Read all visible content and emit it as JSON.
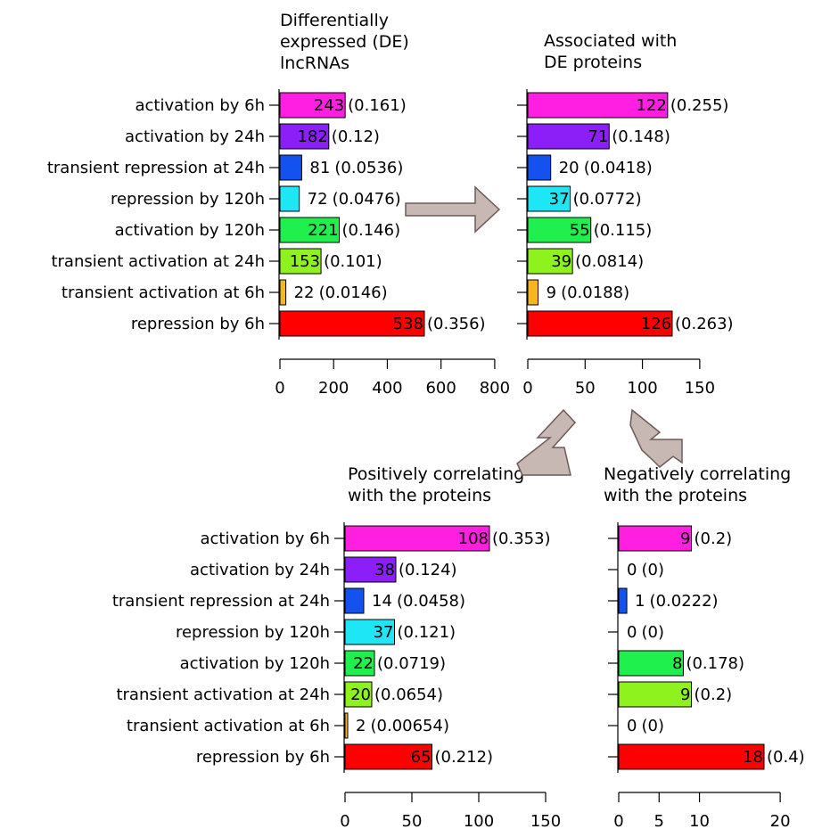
{
  "categories": [
    "activation by 6h",
    "activation by 24h",
    "transient repression at 24h",
    "repression by 120h",
    "activation by 120h",
    "transient activation at 24h",
    "transient activation at 6h",
    "repression by 6h"
  ],
  "colors": [
    "#ff1fe0",
    "#8c1ff7",
    "#1452f0",
    "#1fe6f5",
    "#1ff04d",
    "#8ef21f",
    "#f7b51f",
    "#ff0000"
  ],
  "chart_data": [
    {
      "type": "bar",
      "title": "Differentially expressed (DE) lncRNAs",
      "title_lines": [
        "Differentially",
        "expressed (DE)",
        "lncRNAs"
      ],
      "values": [
        243,
        182,
        81,
        72,
        221,
        153,
        22,
        538
      ],
      "fractions": [
        "0.161",
        "0.12",
        "0.0536",
        "0.0476",
        "0.146",
        "0.101",
        "0.0146",
        "0.356"
      ],
      "xlim": [
        0,
        800
      ],
      "ticks": [
        0,
        200,
        400,
        600,
        800
      ],
      "show_categories": true
    },
    {
      "type": "bar",
      "title": "Associated with DE proteins",
      "title_lines": [
        "Associated with",
        "DE proteins"
      ],
      "values": [
        122,
        71,
        20,
        37,
        55,
        39,
        9,
        126
      ],
      "fractions": [
        "0.255",
        "0.148",
        "0.0418",
        "0.0772",
        "0.115",
        "0.0814",
        "0.0188",
        "0.263"
      ],
      "xlim": [
        0,
        150
      ],
      "ticks": [
        0,
        50,
        100,
        150
      ],
      "show_categories": false
    },
    {
      "type": "bar",
      "title": "Positively correlating with the proteins",
      "title_lines": [
        "Positively correlating",
        "with the proteins"
      ],
      "values": [
        108,
        38,
        14,
        37,
        22,
        20,
        2,
        65
      ],
      "fractions": [
        "0.353",
        "0.124",
        "0.0458",
        "0.121",
        "0.0719",
        "0.0654",
        "0.00654",
        "0.212"
      ],
      "xlim": [
        0,
        150
      ],
      "ticks": [
        0,
        50,
        100,
        150
      ],
      "show_categories": true
    },
    {
      "type": "bar",
      "title": "Negatively correlating with the proteins",
      "title_lines": [
        "Negatively correlating",
        "with the proteins"
      ],
      "values": [
        9,
        0,
        1,
        0,
        8,
        9,
        0,
        18
      ],
      "fractions": [
        "0.2",
        "0",
        "0.0222",
        "0",
        "0.178",
        "0.2",
        "0",
        "0.4"
      ],
      "xlim": [
        0,
        25
      ],
      "ticks": [
        0,
        5,
        10,
        20
      ],
      "show_categories": false
    }
  ]
}
